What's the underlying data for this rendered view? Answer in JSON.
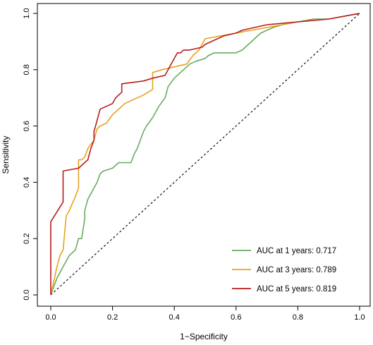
{
  "chart_data": {
    "type": "line",
    "title": "",
    "xlabel": "1−Specificity",
    "ylabel": "Sensitivity",
    "xlim": [
      0,
      1
    ],
    "ylim": [
      0,
      1
    ],
    "x_ticks": [
      "0.0",
      "0.2",
      "0.4",
      "0.6",
      "0.8",
      "1.0"
    ],
    "y_ticks": [
      "0.0",
      "0.2",
      "0.4",
      "0.6",
      "0.8",
      "1.0"
    ],
    "grid": false,
    "legend_position": "bottom-right",
    "reference_line": {
      "from": [
        0,
        0
      ],
      "to": [
        1,
        1
      ],
      "style": "dashed",
      "color": "#000000"
    },
    "series": [
      {
        "name": "AUC at 1 years: 0.717",
        "color": "#6aaa64",
        "x": [
          0,
          0.02,
          0.04,
          0.06,
          0.08,
          0.09,
          0.1,
          0.11,
          0.11,
          0.12,
          0.14,
          0.15,
          0.16,
          0.17,
          0.2,
          0.22,
          0.24,
          0.26,
          0.27,
          0.28,
          0.3,
          0.31,
          0.33,
          0.35,
          0.37,
          0.38,
          0.4,
          0.42,
          0.43,
          0.45,
          0.47,
          0.5,
          0.51,
          0.53,
          0.55,
          0.58,
          0.6,
          0.62,
          0.65,
          0.68,
          0.72,
          0.75,
          0.8,
          0.85,
          0.9,
          0.95,
          1.0
        ],
        "y": [
          0,
          0.06,
          0.1,
          0.14,
          0.16,
          0.2,
          0.2,
          0.27,
          0.3,
          0.34,
          0.38,
          0.4,
          0.43,
          0.44,
          0.45,
          0.47,
          0.47,
          0.47,
          0.5,
          0.52,
          0.58,
          0.6,
          0.63,
          0.67,
          0.7,
          0.74,
          0.77,
          0.79,
          0.8,
          0.82,
          0.83,
          0.84,
          0.85,
          0.86,
          0.86,
          0.86,
          0.86,
          0.87,
          0.9,
          0.93,
          0.95,
          0.96,
          0.97,
          0.98,
          0.98,
          0.99,
          1.0
        ]
      },
      {
        "name": "AUC at 3 years: 0.789",
        "color": "#e8a21a",
        "x": [
          0,
          0.01,
          0.02,
          0.03,
          0.04,
          0.05,
          0.06,
          0.08,
          0.09,
          0.09,
          0.1,
          0.11,
          0.12,
          0.14,
          0.15,
          0.16,
          0.18,
          0.2,
          0.22,
          0.24,
          0.26,
          0.28,
          0.3,
          0.33,
          0.33,
          0.36,
          0.4,
          0.44,
          0.46,
          0.48,
          0.5,
          0.55,
          0.6,
          0.65,
          0.7,
          0.75,
          0.8,
          0.9,
          1.0
        ],
        "y": [
          0,
          0.05,
          0.1,
          0.14,
          0.16,
          0.28,
          0.3,
          0.35,
          0.38,
          0.48,
          0.48,
          0.49,
          0.52,
          0.55,
          0.59,
          0.6,
          0.61,
          0.64,
          0.66,
          0.68,
          0.69,
          0.7,
          0.71,
          0.73,
          0.79,
          0.8,
          0.81,
          0.82,
          0.85,
          0.87,
          0.91,
          0.92,
          0.93,
          0.94,
          0.95,
          0.96,
          0.97,
          0.98,
          1.0
        ]
      },
      {
        "name": "AUC at 5 years: 0.819",
        "color": "#b81c1c",
        "x": [
          0,
          0,
          0.04,
          0.04,
          0.09,
          0.12,
          0.13,
          0.14,
          0.14,
          0.15,
          0.16,
          0.2,
          0.21,
          0.23,
          0.23,
          0.3,
          0.33,
          0.37,
          0.38,
          0.39,
          0.4,
          0.41,
          0.42,
          0.43,
          0.45,
          0.49,
          0.5,
          0.52,
          0.56,
          0.6,
          0.62,
          0.7,
          0.8,
          0.9,
          1.0
        ],
        "y": [
          0,
          0.26,
          0.33,
          0.44,
          0.45,
          0.48,
          0.52,
          0.55,
          0.58,
          0.62,
          0.66,
          0.68,
          0.7,
          0.72,
          0.75,
          0.76,
          0.77,
          0.78,
          0.8,
          0.82,
          0.84,
          0.86,
          0.86,
          0.87,
          0.87,
          0.88,
          0.89,
          0.9,
          0.92,
          0.93,
          0.94,
          0.96,
          0.97,
          0.98,
          1.0
        ]
      }
    ]
  }
}
